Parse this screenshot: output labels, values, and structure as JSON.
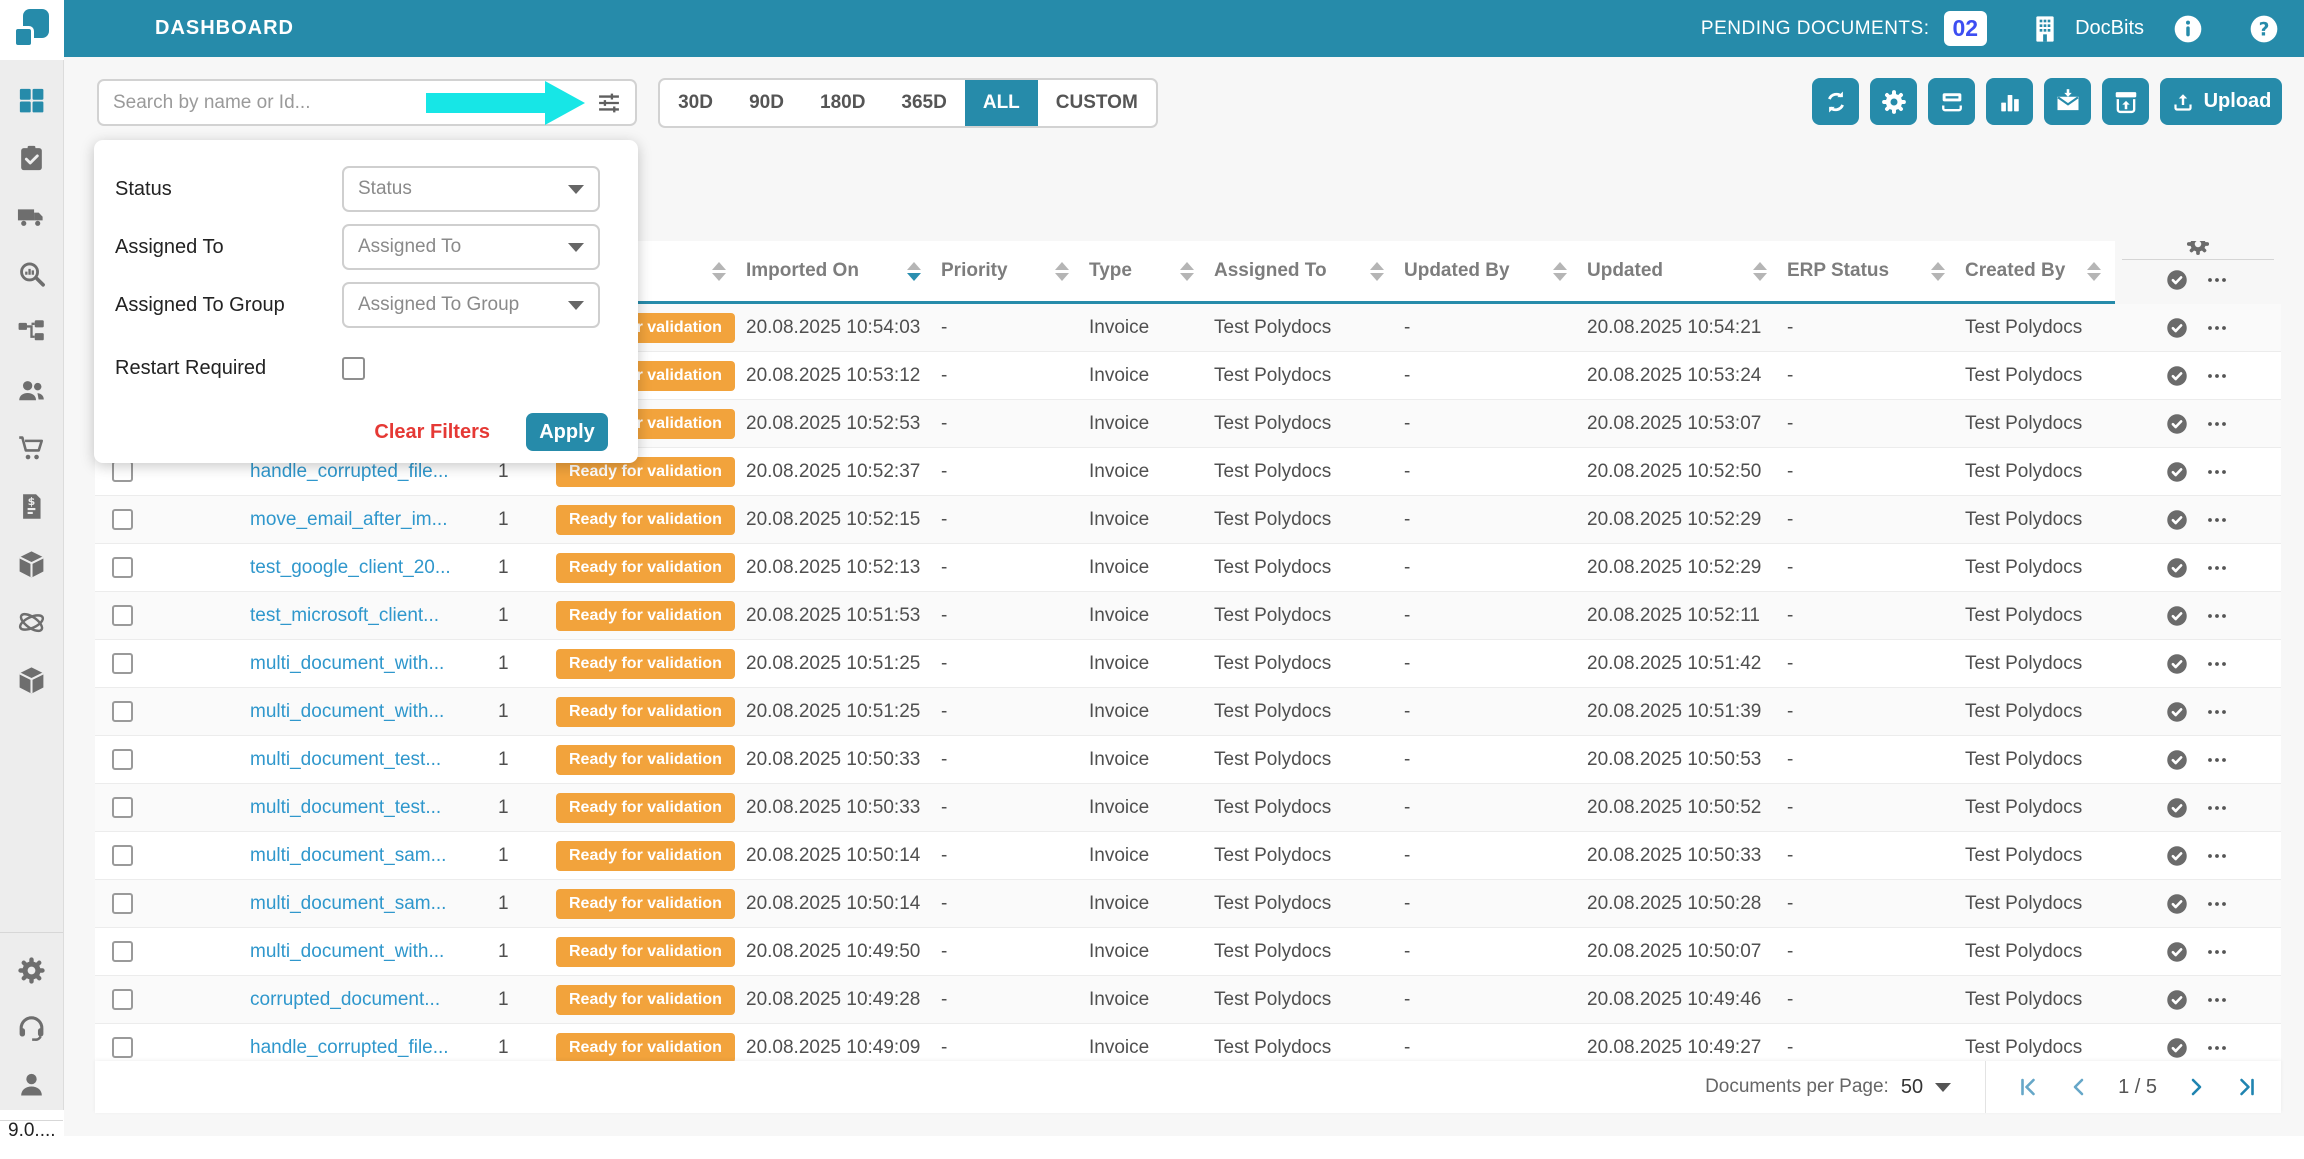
{
  "header": {
    "title": "DASHBOARD",
    "pending_label": "PENDING DOCUMENTS:",
    "pending_count": "02",
    "org_icon": "building-icon",
    "org_name": "DocBits",
    "info_icon": "info-icon",
    "help_icon": "help-icon"
  },
  "sidebar": {
    "items": [
      {
        "id": "dashboard",
        "icon": "grid-icon",
        "active": true
      },
      {
        "id": "validation-tasks",
        "icon": "clipboard-check-icon",
        "active": false
      },
      {
        "id": "shipments",
        "icon": "truck-icon",
        "active": false
      },
      {
        "id": "analytics",
        "icon": "chart-search-icon",
        "active": false
      },
      {
        "id": "workflow",
        "icon": "workflow-icon",
        "active": false
      },
      {
        "id": "users",
        "icon": "users-icon",
        "active": false
      },
      {
        "id": "purchase-orders",
        "icon": "cart-icon",
        "active": false
      },
      {
        "id": "invoices",
        "icon": "invoice-icon",
        "active": false
      },
      {
        "id": "packages",
        "icon": "package-icon",
        "active": false
      },
      {
        "id": "integrations",
        "icon": "network-icon",
        "active": false
      },
      {
        "id": "archive-packages",
        "icon": "package-icon",
        "active": false
      }
    ],
    "bottom_items": [
      {
        "id": "settings",
        "icon": "gear-icon"
      },
      {
        "id": "support",
        "icon": "headset-icon"
      },
      {
        "id": "profile",
        "icon": "person-icon"
      }
    ],
    "version": "9.0...."
  },
  "toolbar": {
    "search_placeholder": "Search by name or Id...",
    "filter_icon": "tune-icon",
    "range_tabs": [
      "30D",
      "90D",
      "180D",
      "365D",
      "ALL",
      "CUSTOM"
    ],
    "active_tab": "ALL",
    "actions": [
      {
        "id": "refresh",
        "icon": "refresh-icon"
      },
      {
        "id": "settings",
        "icon": "gear-icon"
      },
      {
        "id": "scan",
        "icon": "scan-icon"
      },
      {
        "id": "statistics",
        "icon": "bar-chart-icon"
      },
      {
        "id": "mail-import",
        "icon": "mail-import-icon"
      },
      {
        "id": "archive-upload",
        "icon": "archive-up-icon"
      }
    ],
    "upload_label": "Upload",
    "upload_icon": "upload-icon"
  },
  "filter_panel": {
    "fields": [
      {
        "id": "status",
        "label": "Status",
        "placeholder": "Status"
      },
      {
        "id": "assigned-to",
        "label": "Assigned To",
        "placeholder": "Assigned To"
      },
      {
        "id": "assigned-to-group",
        "label": "Assigned To Group",
        "placeholder": "Assigned To Group"
      }
    ],
    "checkbox_label": "Restart Required",
    "checkbox_checked": false,
    "clear_label": "Clear Filters",
    "apply_label": "Apply"
  },
  "table": {
    "columns": [
      {
        "id": "select",
        "label": "",
        "sort": false
      },
      {
        "id": "name",
        "label": "",
        "sort": false
      },
      {
        "id": "count",
        "label": "",
        "sort": false
      },
      {
        "id": "status",
        "label": "",
        "sort": true
      },
      {
        "id": "imported_on",
        "label": "Imported On",
        "sort": true,
        "sorted": "desc"
      },
      {
        "id": "priority",
        "label": "Priority",
        "sort": true
      },
      {
        "id": "type",
        "label": "Type",
        "sort": true
      },
      {
        "id": "assigned_to",
        "label": "Assigned To",
        "sort": true
      },
      {
        "id": "updated_by",
        "label": "Updated By",
        "sort": true
      },
      {
        "id": "updated",
        "label": "Updated",
        "sort": true
      },
      {
        "id": "erp_status",
        "label": "ERP Status",
        "sort": true
      },
      {
        "id": "created_by",
        "label": "Created By",
        "sort": true
      },
      {
        "id": "actions",
        "label": "",
        "sort": false
      }
    ],
    "rows": [
      {
        "name": "",
        "count": "",
        "status": "Ready for validation",
        "imported_on": "20.08.2025 10:54:03",
        "priority": "-",
        "type": "Invoice",
        "assigned_to": "Test Polydocs",
        "updated_by": "-",
        "updated": "20.08.2025 10:54:21",
        "erp_status": "-",
        "created_by": "Test Polydocs"
      },
      {
        "name": "",
        "count": "",
        "status": "Ready for validation",
        "imported_on": "20.08.2025 10:53:12",
        "priority": "-",
        "type": "Invoice",
        "assigned_to": "Test Polydocs",
        "updated_by": "-",
        "updated": "20.08.2025 10:53:24",
        "erp_status": "-",
        "created_by": "Test Polydocs"
      },
      {
        "name": "",
        "count": "",
        "status": "Ready for validation",
        "imported_on": "20.08.2025 10:52:53",
        "priority": "-",
        "type": "Invoice",
        "assigned_to": "Test Polydocs",
        "updated_by": "-",
        "updated": "20.08.2025 10:53:07",
        "erp_status": "-",
        "created_by": "Test Polydocs"
      },
      {
        "name": "handle_corrupted_file...",
        "count": "1",
        "status": "Ready for validation",
        "imported_on": "20.08.2025 10:52:37",
        "priority": "-",
        "type": "Invoice",
        "assigned_to": "Test Polydocs",
        "updated_by": "-",
        "updated": "20.08.2025 10:52:50",
        "erp_status": "-",
        "created_by": "Test Polydocs"
      },
      {
        "name": "move_email_after_im...",
        "count": "1",
        "status": "Ready for validation",
        "imported_on": "20.08.2025 10:52:15",
        "priority": "-",
        "type": "Invoice",
        "assigned_to": "Test Polydocs",
        "updated_by": "-",
        "updated": "20.08.2025 10:52:29",
        "erp_status": "-",
        "created_by": "Test Polydocs"
      },
      {
        "name": "test_google_client_20...",
        "count": "1",
        "status": "Ready for validation",
        "imported_on": "20.08.2025 10:52:13",
        "priority": "-",
        "type": "Invoice",
        "assigned_to": "Test Polydocs",
        "updated_by": "-",
        "updated": "20.08.2025 10:52:29",
        "erp_status": "-",
        "created_by": "Test Polydocs"
      },
      {
        "name": "test_microsoft_client...",
        "count": "1",
        "status": "Ready for validation",
        "imported_on": "20.08.2025 10:51:53",
        "priority": "-",
        "type": "Invoice",
        "assigned_to": "Test Polydocs",
        "updated_by": "-",
        "updated": "20.08.2025 10:52:11",
        "erp_status": "-",
        "created_by": "Test Polydocs"
      },
      {
        "name": "multi_document_with...",
        "count": "1",
        "status": "Ready for validation",
        "imported_on": "20.08.2025 10:51:25",
        "priority": "-",
        "type": "Invoice",
        "assigned_to": "Test Polydocs",
        "updated_by": "-",
        "updated": "20.08.2025 10:51:42",
        "erp_status": "-",
        "created_by": "Test Polydocs"
      },
      {
        "name": "multi_document_with...",
        "count": "1",
        "status": "Ready for validation",
        "imported_on": "20.08.2025 10:51:25",
        "priority": "-",
        "type": "Invoice",
        "assigned_to": "Test Polydocs",
        "updated_by": "-",
        "updated": "20.08.2025 10:51:39",
        "erp_status": "-",
        "created_by": "Test Polydocs"
      },
      {
        "name": "multi_document_test...",
        "count": "1",
        "status": "Ready for validation",
        "imported_on": "20.08.2025 10:50:33",
        "priority": "-",
        "type": "Invoice",
        "assigned_to": "Test Polydocs",
        "updated_by": "-",
        "updated": "20.08.2025 10:50:53",
        "erp_status": "-",
        "created_by": "Test Polydocs"
      },
      {
        "name": "multi_document_test...",
        "count": "1",
        "status": "Ready for validation",
        "imported_on": "20.08.2025 10:50:33",
        "priority": "-",
        "type": "Invoice",
        "assigned_to": "Test Polydocs",
        "updated_by": "-",
        "updated": "20.08.2025 10:50:52",
        "erp_status": "-",
        "created_by": "Test Polydocs"
      },
      {
        "name": "multi_document_sam...",
        "count": "1",
        "status": "Ready for validation",
        "imported_on": "20.08.2025 10:50:14",
        "priority": "-",
        "type": "Invoice",
        "assigned_to": "Test Polydocs",
        "updated_by": "-",
        "updated": "20.08.2025 10:50:33",
        "erp_status": "-",
        "created_by": "Test Polydocs"
      },
      {
        "name": "multi_document_sam...",
        "count": "1",
        "status": "Ready for validation",
        "imported_on": "20.08.2025 10:50:14",
        "priority": "-",
        "type": "Invoice",
        "assigned_to": "Test Polydocs",
        "updated_by": "-",
        "updated": "20.08.2025 10:50:28",
        "erp_status": "-",
        "created_by": "Test Polydocs"
      },
      {
        "name": "multi_document_with...",
        "count": "1",
        "status": "Ready for validation",
        "imported_on": "20.08.2025 10:49:50",
        "priority": "-",
        "type": "Invoice",
        "assigned_to": "Test Polydocs",
        "updated_by": "-",
        "updated": "20.08.2025 10:50:07",
        "erp_status": "-",
        "created_by": "Test Polydocs"
      },
      {
        "name": "corrupted_document...",
        "count": "1",
        "status": "Ready for validation",
        "imported_on": "20.08.2025 10:49:28",
        "priority": "-",
        "type": "Invoice",
        "assigned_to": "Test Polydocs",
        "updated_by": "-",
        "updated": "20.08.2025 10:49:46",
        "erp_status": "-",
        "created_by": "Test Polydocs"
      },
      {
        "name": "handle_corrupted_file...",
        "count": "1",
        "status": "Ready for validation",
        "imported_on": "20.08.2025 10:49:09",
        "priority": "-",
        "type": "Invoice",
        "assigned_to": "Test Polydocs",
        "updated_by": "-",
        "updated": "20.08.2025 10:49:27",
        "erp_status": "-",
        "created_by": "Test Polydocs"
      }
    ],
    "row_actions": {
      "verify_icon": "seal-check-icon",
      "menu_icon": "dots-icon",
      "column_settings_icon": "gear-icon"
    }
  },
  "pagination": {
    "per_page_label": "Documents per Page:",
    "per_page_value": "50",
    "first_icon": "page-first-icon",
    "prev_icon": "page-prev-icon",
    "page_indicator": "1 / 5",
    "next_icon": "page-next-icon",
    "last_icon": "page-last-icon"
  },
  "colors": {
    "brand_teal": "#268baa",
    "pending_badge_blue": "#3d4ef2",
    "status_badge_orange": "#f2a33c",
    "link_blue": "#2f97cc",
    "clear_red": "#e53935",
    "annotation_arrow_cyan": "#17e6e6"
  }
}
